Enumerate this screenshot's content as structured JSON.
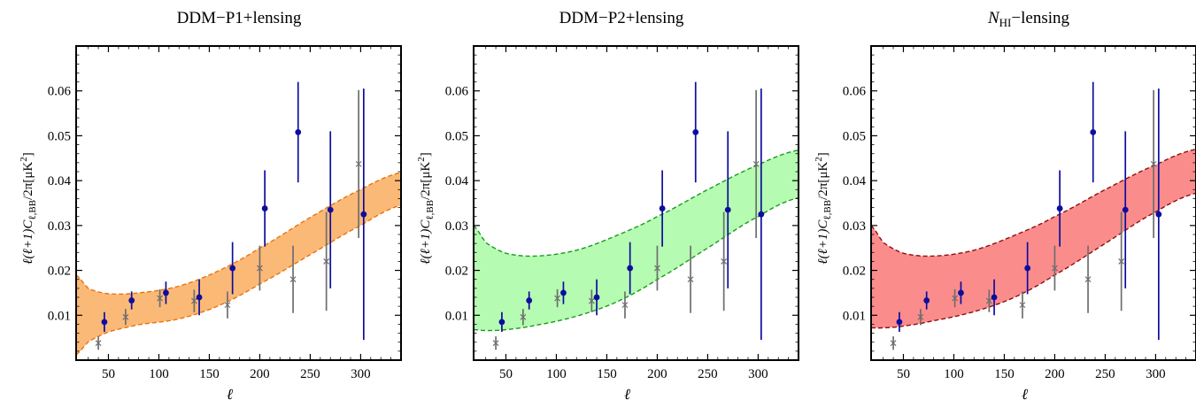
{
  "chart_data": [
    {
      "type": "scatter",
      "title": "DDM−P1+lensing",
      "xlabel": "ℓ",
      "ylabel": "ℓ(ℓ+1)C",
      "ylabel_sub": "ℓ,BB",
      "ylabel_tail": "/2π[μK",
      "ylabel_sup": "2",
      "ylabel_close": "]",
      "xlim": [
        18,
        340
      ],
      "ylim": [
        0.0,
        0.07
      ],
      "xticks": [
        50,
        100,
        150,
        200,
        250,
        300
      ],
      "yticks": [
        0.01,
        0.02,
        0.03,
        0.04,
        0.05,
        0.06
      ],
      "band": {
        "fill": "#fbb977",
        "edge": "#e8740c",
        "x": [
          18,
          30,
          50,
          80,
          120,
          160,
          200,
          250,
          300,
          340
        ],
        "lower": [
          0.0012,
          0.0041,
          0.0063,
          0.0079,
          0.0092,
          0.0122,
          0.017,
          0.0235,
          0.03,
          0.0345
        ],
        "upper": [
          0.019,
          0.016,
          0.0148,
          0.015,
          0.0165,
          0.02,
          0.025,
          0.0318,
          0.038,
          0.0418
        ]
      },
      "series": [
        {
          "marker": "dot",
          "color": "#0d0d9e",
          "x": [
            46,
            73,
            107,
            140,
            173,
            205,
            238,
            270,
            303
          ],
          "y": [
            0.0085,
            0.0133,
            0.015,
            0.014,
            0.0205,
            0.0338,
            0.0508,
            0.0335,
            0.0325
          ],
          "err": [
            0.0022,
            0.002,
            0.0025,
            0.004,
            0.0058,
            0.0085,
            0.0112,
            0.0175,
            0.028
          ]
        },
        {
          "marker": "cross",
          "color": "#6e6e6e",
          "x": [
            40,
            67,
            101,
            135,
            168,
            200,
            233,
            266,
            298
          ],
          "y": [
            0.0038,
            0.0096,
            0.0138,
            0.0132,
            0.0123,
            0.0205,
            0.018,
            0.022,
            0.0437
          ],
          "err": [
            0.0015,
            0.0018,
            0.002,
            0.0025,
            0.003,
            0.005,
            0.0075,
            0.011,
            0.0165
          ]
        }
      ]
    },
    {
      "type": "scatter",
      "title": "DDM−P2+lensing",
      "xlabel": "ℓ",
      "ylabel": "ℓ(ℓ+1)C",
      "ylabel_sub": "ℓ,BB",
      "ylabel_tail": "/2π[μK",
      "ylabel_sup": "2",
      "ylabel_close": "]",
      "xlim": [
        18,
        340
      ],
      "ylim": [
        0.0,
        0.07
      ],
      "xticks": [
        50,
        100,
        150,
        200,
        250,
        300
      ],
      "yticks": [
        0.01,
        0.02,
        0.03,
        0.04,
        0.05,
        0.06
      ],
      "band": {
        "fill": "#b5fbb1",
        "edge": "#1a9a1a",
        "x": [
          18,
          30,
          50,
          80,
          120,
          160,
          200,
          250,
          300,
          340
        ],
        "lower": [
          0.0068,
          0.0066,
          0.0068,
          0.0078,
          0.0098,
          0.013,
          0.018,
          0.025,
          0.032,
          0.0362
        ],
        "upper": [
          0.03,
          0.0262,
          0.0238,
          0.0232,
          0.0245,
          0.0278,
          0.032,
          0.038,
          0.0435,
          0.0468
        ]
      },
      "series": [
        {
          "marker": "dot",
          "color": "#0d0d9e",
          "x": [
            46,
            73,
            107,
            140,
            173,
            205,
            238,
            270,
            303
          ],
          "y": [
            0.0085,
            0.0133,
            0.015,
            0.014,
            0.0205,
            0.0338,
            0.0508,
            0.0335,
            0.0325
          ],
          "err": [
            0.0022,
            0.002,
            0.0025,
            0.004,
            0.0058,
            0.0085,
            0.0112,
            0.0175,
            0.028
          ]
        },
        {
          "marker": "cross",
          "color": "#6e6e6e",
          "x": [
            40,
            67,
            101,
            135,
            168,
            200,
            233,
            266,
            298
          ],
          "y": [
            0.0038,
            0.0096,
            0.0138,
            0.0132,
            0.0123,
            0.0205,
            0.018,
            0.022,
            0.0437
          ],
          "err": [
            0.0015,
            0.0018,
            0.002,
            0.0025,
            0.003,
            0.005,
            0.0075,
            0.011,
            0.0165
          ]
        }
      ]
    },
    {
      "type": "scatter",
      "title": "N",
      "title_sub": "HI",
      "title_tail": "−lensing",
      "xlabel": "ℓ",
      "ylabel": "ℓ(ℓ+1)C",
      "ylabel_sub": "ℓ,BB",
      "ylabel_tail": "/2π[μK",
      "ylabel_sup": "2",
      "ylabel_close": "]",
      "xlim": [
        18,
        340
      ],
      "ylim": [
        0.0,
        0.07
      ],
      "xticks": [
        50,
        100,
        150,
        200,
        250,
        300
      ],
      "yticks": [
        0.01,
        0.02,
        0.03,
        0.04,
        0.05,
        0.06
      ],
      "band": {
        "fill": "#fb8c8c",
        "edge": "#8a1010",
        "x": [
          18,
          30,
          50,
          80,
          120,
          160,
          200,
          250,
          300,
          340
        ],
        "lower": [
          0.0072,
          0.0072,
          0.0076,
          0.0088,
          0.0108,
          0.014,
          0.019,
          0.026,
          0.033,
          0.0372
        ],
        "upper": [
          0.03,
          0.0262,
          0.0238,
          0.0232,
          0.0245,
          0.0278,
          0.032,
          0.038,
          0.0435,
          0.047
        ]
      },
      "series": [
        {
          "marker": "dot",
          "color": "#0d0d9e",
          "x": [
            46,
            73,
            107,
            140,
            173,
            205,
            238,
            270,
            303
          ],
          "y": [
            0.0085,
            0.0133,
            0.015,
            0.014,
            0.0205,
            0.0338,
            0.0508,
            0.0335,
            0.0325
          ],
          "err": [
            0.0022,
            0.002,
            0.0025,
            0.004,
            0.0058,
            0.0085,
            0.0112,
            0.0175,
            0.028
          ]
        },
        {
          "marker": "cross",
          "color": "#6e6e6e",
          "x": [
            40,
            67,
            101,
            135,
            168,
            200,
            233,
            266,
            298
          ],
          "y": [
            0.0038,
            0.0096,
            0.0138,
            0.0132,
            0.0123,
            0.0205,
            0.018,
            0.022,
            0.0437
          ],
          "err": [
            0.0015,
            0.0018,
            0.002,
            0.0025,
            0.003,
            0.005,
            0.0075,
            0.011,
            0.0165
          ]
        }
      ]
    }
  ]
}
